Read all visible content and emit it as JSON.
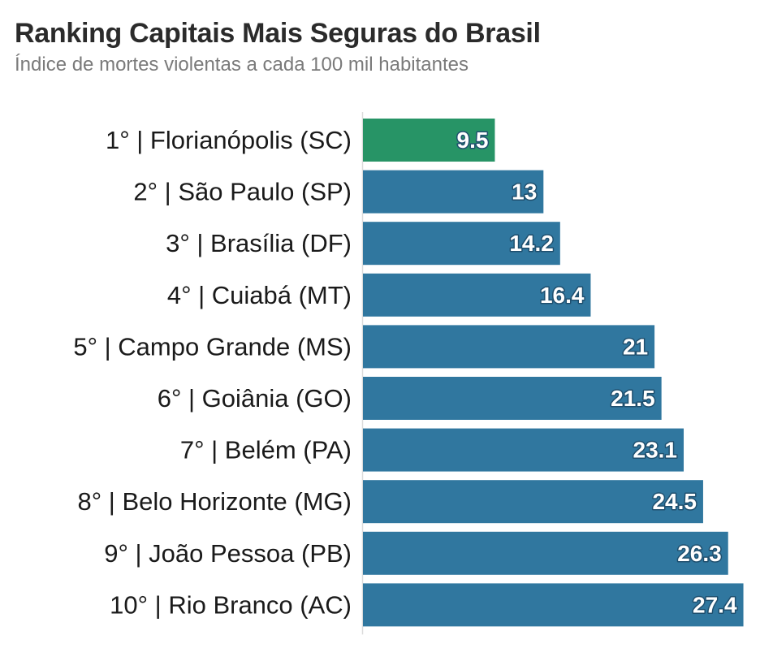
{
  "header": {
    "title": "Ranking Capitais Mais Seguras do Brasil",
    "subtitle": "Índice de mortes violentas a cada 100 mil habitantes"
  },
  "chart_data": {
    "type": "bar",
    "orientation": "horizontal",
    "title": "Ranking Capitais Mais Seguras do Brasil",
    "subtitle": "Índice de mortes violentas a cada 100 mil habitantes",
    "xlabel": "",
    "ylabel": "",
    "xlim": [
      0,
      28
    ],
    "grid": false,
    "categories": [
      "1° | Florianópolis (SC)",
      "2° | São Paulo (SP)",
      "3° | Brasília (DF)",
      "4° | Cuiabá (MT)",
      "5° | Campo Grande (MS)",
      "6° | Goiânia (GO)",
      "7° | Belém (PA)",
      "8° | Belo Horizonte (MG)",
      "9° | João Pessoa (PB)",
      "10° | Rio Branco (AC)"
    ],
    "values": [
      9.5,
      13,
      14.2,
      16.4,
      21,
      21.5,
      23.1,
      24.5,
      26.3,
      27.4
    ],
    "value_labels": [
      "9.5",
      "13",
      "14.2",
      "16.4",
      "21",
      "21.5",
      "23.1",
      "24.5",
      "26.3",
      "27.4"
    ],
    "colors": {
      "highlight": "#279466",
      "default": "#30779f",
      "axis": "#dcdcdc"
    },
    "highlight_index": 0
  }
}
